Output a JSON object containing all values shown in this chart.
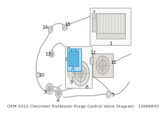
{
  "title": "OEM 2022 Chevrolet Trailblazer Purge Control Valve Diagram - 12666845",
  "title_fontsize": 4.2,
  "bg_color": "#ffffff",
  "line_color": "#9a9a9a",
  "part_color": "#d8d8d5",
  "highlight_color": "#3a9fd4",
  "highlight_bg": "#b8ddf0",
  "label_fontsize": 5.0,
  "label_color": "#222222"
}
